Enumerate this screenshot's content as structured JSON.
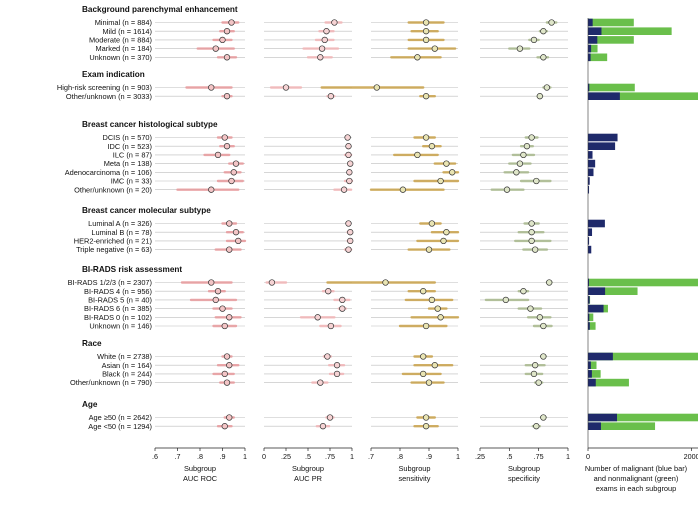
{
  "chart_data": {
    "type": "forest",
    "panels": [
      {
        "key": "roc",
        "xlabel": [
          "Subgroup",
          "AUC ROC"
        ],
        "xlim": [
          0.6,
          1.0
        ],
        "ticks": [
          0.6,
          0.7,
          0.8,
          0.9,
          1.0
        ],
        "tick_labels": [
          ".6",
          ".7",
          ".8",
          ".9",
          "1"
        ],
        "color": "#e8999c",
        "marker_fill": "#f3c5c6"
      },
      {
        "key": "pr",
        "xlabel": [
          "Subgroup",
          "AUC PR"
        ],
        "xlim": [
          0,
          1.0
        ],
        "ticks": [
          0,
          0.25,
          0.5,
          0.75,
          1.0
        ],
        "tick_labels": [
          "0",
          ".25",
          ".5",
          ".75",
          "1"
        ],
        "color": "#f2b5b7",
        "marker_fill": "#f6d3d4"
      },
      {
        "key": "sens",
        "xlabel": [
          "Subgroup",
          "sensitivity"
        ],
        "xlim": [
          0.7,
          1.0
        ],
        "ticks": [
          0.7,
          0.8,
          0.9,
          1.0
        ],
        "tick_labels": [
          ".7",
          ".8",
          ".9",
          "1"
        ],
        "color": "#c9a24a",
        "marker_fill": "#e9e4b2"
      },
      {
        "key": "spec",
        "xlabel": [
          "Subgroup",
          "specificity"
        ],
        "xlim": [
          0.25,
          1.0
        ],
        "ticks": [
          0.25,
          0.5,
          0.75,
          1.0
        ],
        "tick_labels": [
          ".25",
          ".5",
          ".75",
          "1"
        ],
        "color": "#a8b88c",
        "marker_fill": "#dfe6c9"
      }
    ],
    "bar_panel": {
      "xlabel": [
        "Number of malignant (blue bar)",
        "and nonmalignant (green)",
        "exams in each subgroup"
      ],
      "ticks": [
        0,
        2000
      ],
      "tick_labels": [
        "0",
        "2000"
      ],
      "xlim": [
        0,
        2200
      ],
      "malignant_color": "#1f2a6b",
      "nonmalignant_color": "#6abf4b"
    },
    "groups": [
      {
        "title": "Background parenchymal enhancement",
        "rows": [
          {
            "label": "Minimal (n = 884)",
            "roc": 0.94,
            "roc_ci": [
              0.9,
              0.97
            ],
            "pr": 0.8,
            "pr_ci": [
              0.7,
              0.88
            ],
            "sens": 0.89,
            "sens_ci": [
              0.83,
              0.95
            ],
            "spec": 0.86,
            "spec_ci": [
              0.82,
              0.9
            ],
            "mal": 90,
            "non": 794
          },
          {
            "label": "Mild (n = 1614)",
            "roc": 0.92,
            "roc_ci": [
              0.89,
              0.95
            ],
            "pr": 0.71,
            "pr_ci": [
              0.63,
              0.79
            ],
            "sens": 0.89,
            "sens_ci": [
              0.84,
              0.93
            ],
            "spec": 0.79,
            "spec_ci": [
              0.76,
              0.82
            ],
            "mal": 260,
            "non": 1354
          },
          {
            "label": "Moderate (n = 884)",
            "roc": 0.9,
            "roc_ci": [
              0.86,
              0.94
            ],
            "pr": 0.69,
            "pr_ci": [
              0.59,
              0.79
            ],
            "sens": 0.89,
            "sens_ci": [
              0.83,
              0.95
            ],
            "spec": 0.71,
            "spec_ci": [
              0.67,
              0.75
            ],
            "mal": 180,
            "non": 704
          },
          {
            "label": "Marked (n = 184)",
            "roc": 0.87,
            "roc_ci": [
              0.79,
              0.95
            ],
            "pr": 0.66,
            "pr_ci": [
              0.45,
              0.84
            ],
            "sens": 0.92,
            "sens_ci": [
              0.83,
              0.99
            ],
            "spec": 0.59,
            "spec_ci": [
              0.5,
              0.67
            ],
            "mal": 60,
            "non": 124
          },
          {
            "label": "Unknown (n = 370)",
            "roc": 0.92,
            "roc_ci": [
              0.88,
              0.96
            ],
            "pr": 0.64,
            "pr_ci": [
              0.5,
              0.77
            ],
            "sens": 0.86,
            "sens_ci": [
              0.77,
              0.94
            ],
            "spec": 0.79,
            "spec_ci": [
              0.74,
              0.83
            ],
            "mal": 50,
            "non": 320
          }
        ]
      },
      {
        "title": "Exam indication",
        "rows": [
          {
            "label": "High-risk screening (n = 903)",
            "roc": 0.85,
            "roc_ci": [
              0.74,
              0.94
            ],
            "pr": 0.25,
            "pr_ci": [
              0.08,
              0.42
            ],
            "sens": 0.72,
            "sens_ci": [
              0.53,
              0.88
            ],
            "spec": 0.82,
            "spec_ci": [
              0.79,
              0.85
            ],
            "mal": 25,
            "non": 878
          },
          {
            "label": "Other/unknown (n = 3033)",
            "roc": 0.92,
            "roc_ci": [
              0.9,
              0.94
            ],
            "pr": 0.76,
            "pr_ci": [
              0.72,
              0.8
            ],
            "sens": 0.89,
            "sens_ci": [
              0.87,
              0.92
            ],
            "spec": 0.76,
            "spec_ci": [
              0.74,
              0.78
            ],
            "mal": 615,
            "non": 2418
          }
        ]
      },
      {
        "title": "Breast cancer histological subtype",
        "rows": [
          {
            "label": "DCIS (n = 570)",
            "roc": 0.91,
            "roc_ci": [
              0.88,
              0.94
            ],
            "pr": 0.95,
            "pr_ci": [
              0.93,
              0.97
            ],
            "sens": 0.89,
            "sens_ci": [
              0.85,
              0.92
            ],
            "spec": 0.69,
            "spec_ci": [
              0.64,
              0.74
            ],
            "mal": 570,
            "non": 0
          },
          {
            "label": "IDC (n = 523)",
            "roc": 0.92,
            "roc_ci": [
              0.89,
              0.95
            ],
            "pr": 0.96,
            "pr_ci": [
              0.94,
              0.98
            ],
            "sens": 0.91,
            "sens_ci": [
              0.88,
              0.94
            ],
            "spec": 0.65,
            "spec_ci": [
              0.6,
              0.7
            ],
            "mal": 523,
            "non": 0
          },
          {
            "label": "ILC (n = 87)",
            "roc": 0.88,
            "roc_ci": [
              0.82,
              0.93
            ],
            "pr": 0.96,
            "pr_ci": [
              0.92,
              0.99
            ],
            "sens": 0.86,
            "sens_ci": [
              0.78,
              0.93
            ],
            "spec": 0.62,
            "spec_ci": [
              0.53,
              0.71
            ],
            "mal": 87,
            "non": 0
          },
          {
            "label": "Meta (n = 138)",
            "roc": 0.96,
            "roc_ci": [
              0.93,
              0.99
            ],
            "pr": 0.98,
            "pr_ci": [
              0.96,
              0.99
            ],
            "sens": 0.96,
            "sens_ci": [
              0.92,
              0.99
            ],
            "spec": 0.59,
            "spec_ci": [
              0.5,
              0.68
            ],
            "mal": 138,
            "non": 0
          },
          {
            "label": "Adenocarcinoma (n = 106)",
            "roc": 0.95,
            "roc_ci": [
              0.91,
              0.98
            ],
            "pr": 0.97,
            "pr_ci": [
              0.95,
              0.99
            ],
            "sens": 0.98,
            "sens_ci": [
              0.95,
              1.0
            ],
            "spec": 0.56,
            "spec_ci": [
              0.46,
              0.66
            ],
            "mal": 106,
            "non": 0
          },
          {
            "label": "IMC (n = 33)",
            "roc": 0.94,
            "roc_ci": [
              0.88,
              0.99
            ],
            "pr": 0.97,
            "pr_ci": [
              0.92,
              1.0
            ],
            "sens": 0.94,
            "sens_ci": [
              0.85,
              1.0
            ],
            "spec": 0.73,
            "spec_ci": [
              0.6,
              0.85
            ],
            "mal": 33,
            "non": 0
          },
          {
            "label": "Other/unknown (n = 20)",
            "roc": 0.85,
            "roc_ci": [
              0.7,
              0.97
            ],
            "pr": 0.91,
            "pr_ci": [
              0.8,
              0.99
            ],
            "sens": 0.81,
            "sens_ci": [
              0.7,
              0.95
            ],
            "spec": 0.48,
            "spec_ci": [
              0.35,
              0.62
            ],
            "mal": 20,
            "non": 0
          }
        ]
      },
      {
        "title": "Breast cancer molecular subtype",
        "rows": [
          {
            "label": "Luminal A (n = 326)",
            "roc": 0.93,
            "roc_ci": [
              0.9,
              0.96
            ],
            "pr": 0.96,
            "pr_ci": [
              0.94,
              0.98
            ],
            "sens": 0.91,
            "sens_ci": [
              0.87,
              0.94
            ],
            "spec": 0.69,
            "spec_ci": [
              0.63,
              0.75
            ],
            "mal": 326,
            "non": 0
          },
          {
            "label": "Luminal B (n = 78)",
            "roc": 0.96,
            "roc_ci": [
              0.92,
              0.99
            ],
            "pr": 0.98,
            "pr_ci": [
              0.95,
              0.99
            ],
            "sens": 0.96,
            "sens_ci": [
              0.91,
              1.0
            ],
            "spec": 0.69,
            "spec_ci": [
              0.58,
              0.79
            ],
            "mal": 78,
            "non": 0
          },
          {
            "label": "HER2-enriched (n = 21)",
            "roc": 0.97,
            "roc_ci": [
              0.92,
              1.0
            ],
            "pr": 0.98,
            "pr_ci": [
              0.95,
              1.0
            ],
            "sens": 0.95,
            "sens_ci": [
              0.86,
              1.0
            ],
            "spec": 0.69,
            "spec_ci": [
              0.55,
              0.85
            ],
            "mal": 21,
            "non": 0
          },
          {
            "label": "Triple negative (n = 63)",
            "roc": 0.93,
            "roc_ci": [
              0.87,
              0.98
            ],
            "pr": 0.96,
            "pr_ci": [
              0.92,
              0.99
            ],
            "sens": 0.9,
            "sens_ci": [
              0.83,
              0.97
            ],
            "spec": 0.72,
            "spec_ci": [
              0.62,
              0.82
            ],
            "mal": 63,
            "non": 0
          }
        ]
      },
      {
        "title": "BI-RADS risk assessment",
        "rows": [
          {
            "label": "BI-RADS 1/2/3 (n = 2307)",
            "roc": 0.85,
            "roc_ci": [
              0.72,
              0.94
            ],
            "pr": 0.09,
            "pr_ci": [
              0.03,
              0.25
            ],
            "sens": 0.75,
            "sens_ci": [
              0.55,
              0.92
            ],
            "spec": 0.84,
            "spec_ci": [
              0.82,
              0.86
            ],
            "mal": 20,
            "non": 2287
          },
          {
            "label": "BI-RADS 4 (n = 956)",
            "roc": 0.88,
            "roc_ci": [
              0.84,
              0.91
            ],
            "pr": 0.73,
            "pr_ci": [
              0.67,
              0.79
            ],
            "sens": 0.88,
            "sens_ci": [
              0.83,
              0.92
            ],
            "spec": 0.62,
            "spec_ci": [
              0.58,
              0.66
            ],
            "mal": 330,
            "non": 626
          },
          {
            "label": "BI-RADS 5 (n = 40)",
            "roc": 0.87,
            "roc_ci": [
              0.76,
              0.96
            ],
            "pr": 0.89,
            "pr_ci": [
              0.8,
              0.97
            ],
            "sens": 0.91,
            "sens_ci": [
              0.82,
              0.98
            ],
            "spec": 0.47,
            "spec_ci": [
              0.3,
              0.66
            ],
            "mal": 32,
            "non": 8
          },
          {
            "label": "BI-RADS 6 (n = 385)",
            "roc": 0.9,
            "roc_ci": [
              0.86,
              0.94
            ],
            "pr": 0.89,
            "pr_ci": [
              0.85,
              0.93
            ],
            "sens": 0.93,
            "sens_ci": [
              0.9,
              0.96
            ],
            "spec": 0.68,
            "spec_ci": [
              0.58,
              0.77
            ],
            "mal": 300,
            "non": 85
          },
          {
            "label": "BI-RADS 0 (n = 102)",
            "roc": 0.93,
            "roc_ci": [
              0.87,
              0.98
            ],
            "pr": 0.61,
            "pr_ci": [
              0.42,
              0.8
            ],
            "sens": 0.94,
            "sens_ci": [
              0.84,
              1.0
            ],
            "spec": 0.76,
            "spec_ci": [
              0.66,
              0.85
            ],
            "mal": 25,
            "non": 77
          },
          {
            "label": "Unknown (n = 146)",
            "roc": 0.91,
            "roc_ci": [
              0.86,
              0.96
            ],
            "pr": 0.76,
            "pr_ci": [
              0.64,
              0.87
            ],
            "sens": 0.89,
            "sens_ci": [
              0.8,
              0.96
            ],
            "spec": 0.79,
            "spec_ci": [
              0.71,
              0.86
            ],
            "mal": 35,
            "non": 111
          }
        ]
      },
      {
        "title": "Race",
        "rows": [
          {
            "label": "White (n = 2738)",
            "roc": 0.92,
            "roc_ci": [
              0.9,
              0.94
            ],
            "pr": 0.72,
            "pr_ci": [
              0.68,
              0.76
            ],
            "sens": 0.88,
            "sens_ci": [
              0.85,
              0.91
            ],
            "spec": 0.79,
            "spec_ci": [
              0.77,
              0.81
            ],
            "mal": 480,
            "non": 2258
          },
          {
            "label": "Asian (n = 164)",
            "roc": 0.93,
            "roc_ci": [
              0.88,
              0.97
            ],
            "pr": 0.83,
            "pr_ci": [
              0.74,
              0.91
            ],
            "sens": 0.92,
            "sens_ci": [
              0.85,
              0.98
            ],
            "spec": 0.72,
            "spec_ci": [
              0.64,
              0.8
            ],
            "mal": 55,
            "non": 109
          },
          {
            "label": "Black (n = 244)",
            "roc": 0.91,
            "roc_ci": [
              0.86,
              0.95
            ],
            "pr": 0.83,
            "pr_ci": [
              0.75,
              0.9
            ],
            "sens": 0.88,
            "sens_ci": [
              0.81,
              0.94
            ],
            "spec": 0.71,
            "spec_ci": [
              0.64,
              0.78
            ],
            "mal": 75,
            "non": 169
          },
          {
            "label": "Other/unknown (n = 790)",
            "roc": 0.92,
            "roc_ci": [
              0.89,
              0.95
            ],
            "pr": 0.64,
            "pr_ci": [
              0.55,
              0.72
            ],
            "sens": 0.9,
            "sens_ci": [
              0.84,
              0.95
            ],
            "spec": 0.75,
            "spec_ci": [
              0.72,
              0.78
            ],
            "mal": 150,
            "non": 640
          }
        ]
      },
      {
        "title": "Age",
        "rows": [
          {
            "label": "Age ≥50 (n = 2642)",
            "roc": 0.93,
            "roc_ci": [
              0.91,
              0.95
            ],
            "pr": 0.75,
            "pr_ci": [
              0.71,
              0.79
            ],
            "sens": 0.89,
            "sens_ci": [
              0.86,
              0.92
            ],
            "spec": 0.79,
            "spec_ci": [
              0.77,
              0.81
            ],
            "mal": 560,
            "non": 2082
          },
          {
            "label": "Age <50 (n = 1294)",
            "roc": 0.91,
            "roc_ci": [
              0.88,
              0.94
            ],
            "pr": 0.67,
            "pr_ci": [
              0.6,
              0.74
            ],
            "sens": 0.89,
            "sens_ci": [
              0.85,
              0.93
            ],
            "spec": 0.73,
            "spec_ci": [
              0.7,
              0.76
            ],
            "mal": 250,
            "non": 1044
          }
        ]
      }
    ]
  }
}
